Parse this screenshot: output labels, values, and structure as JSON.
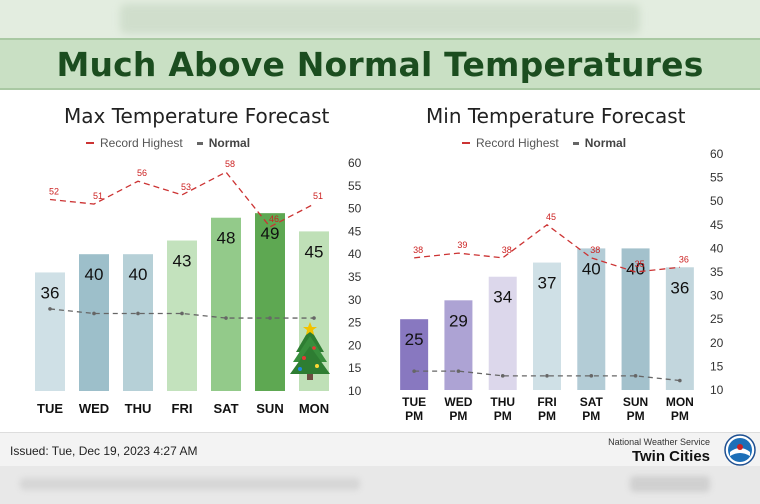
{
  "banner": {
    "title": "Much Above Normal Temperatures"
  },
  "left_chart": {
    "title": "Max Temperature Forecast",
    "legend_record": "Record Highest",
    "legend_normal": "Normal"
  },
  "right_chart": {
    "title": "Min Temperature Forecast",
    "legend_record": "Record Highest",
    "legend_normal": "Normal"
  },
  "footer": {
    "issued": "Issued: Tue, Dec 19, 2023 4:27 AM",
    "agency": "National Weather Service",
    "office": "Twin Cities"
  },
  "chart_data": [
    {
      "type": "bar",
      "title": "Max Temperature Forecast",
      "categories": [
        "TUE",
        "WED",
        "THU",
        "FRI",
        "SAT",
        "SUN",
        "MON"
      ],
      "ylim": [
        10,
        60
      ],
      "yticks": [
        10,
        15,
        20,
        25,
        30,
        35,
        40,
        45,
        50,
        55,
        60
      ],
      "series": [
        {
          "values": [
            36,
            40,
            40,
            43,
            48,
            49,
            45
          ],
          "colors": [
            "#cfe0e6",
            "#9dbfca",
            "#b6d0d7",
            "#c3e2bd",
            "#93ca8a",
            "#5ea852",
            "#bfe0b7"
          ]
        },
        {
          "name": "Record Highest",
          "values": [
            52,
            51,
            56,
            53,
            58,
            46,
            51
          ],
          "color": "#cc3333"
        },
        {
          "name": "Normal",
          "values": [
            28,
            27,
            27,
            27,
            26,
            26,
            26
          ],
          "color": "#666666"
        }
      ],
      "grid": false
    },
    {
      "type": "bar",
      "title": "Min Temperature Forecast",
      "categories": [
        [
          "TUE",
          "PM"
        ],
        [
          "WED",
          "PM"
        ],
        [
          "THU",
          "PM"
        ],
        [
          "FRI",
          "PM"
        ],
        [
          "SAT",
          "PM"
        ],
        [
          "SUN",
          "PM"
        ],
        [
          "MON",
          "PM"
        ]
      ],
      "ylim": [
        10,
        60
      ],
      "yticks": [
        10,
        15,
        20,
        25,
        30,
        35,
        40,
        45,
        50,
        55,
        60
      ],
      "series": [
        {
          "values": [
            25,
            29,
            34,
            37,
            40,
            40,
            36
          ],
          "colors": [
            "#8878c0",
            "#ada3d4",
            "#dcd7eb",
            "#cfe0e6",
            "#b3ccd6",
            "#a3c1cc",
            "#c2d6dd"
          ]
        },
        {
          "name": "Record Highest",
          "values": [
            38,
            39,
            38,
            45,
            38,
            35,
            36
          ],
          "color": "#cc3333"
        },
        {
          "name": "Normal",
          "values": [
            14,
            14,
            13,
            13,
            13,
            13,
            12
          ],
          "color": "#666666"
        }
      ],
      "grid": false
    }
  ]
}
